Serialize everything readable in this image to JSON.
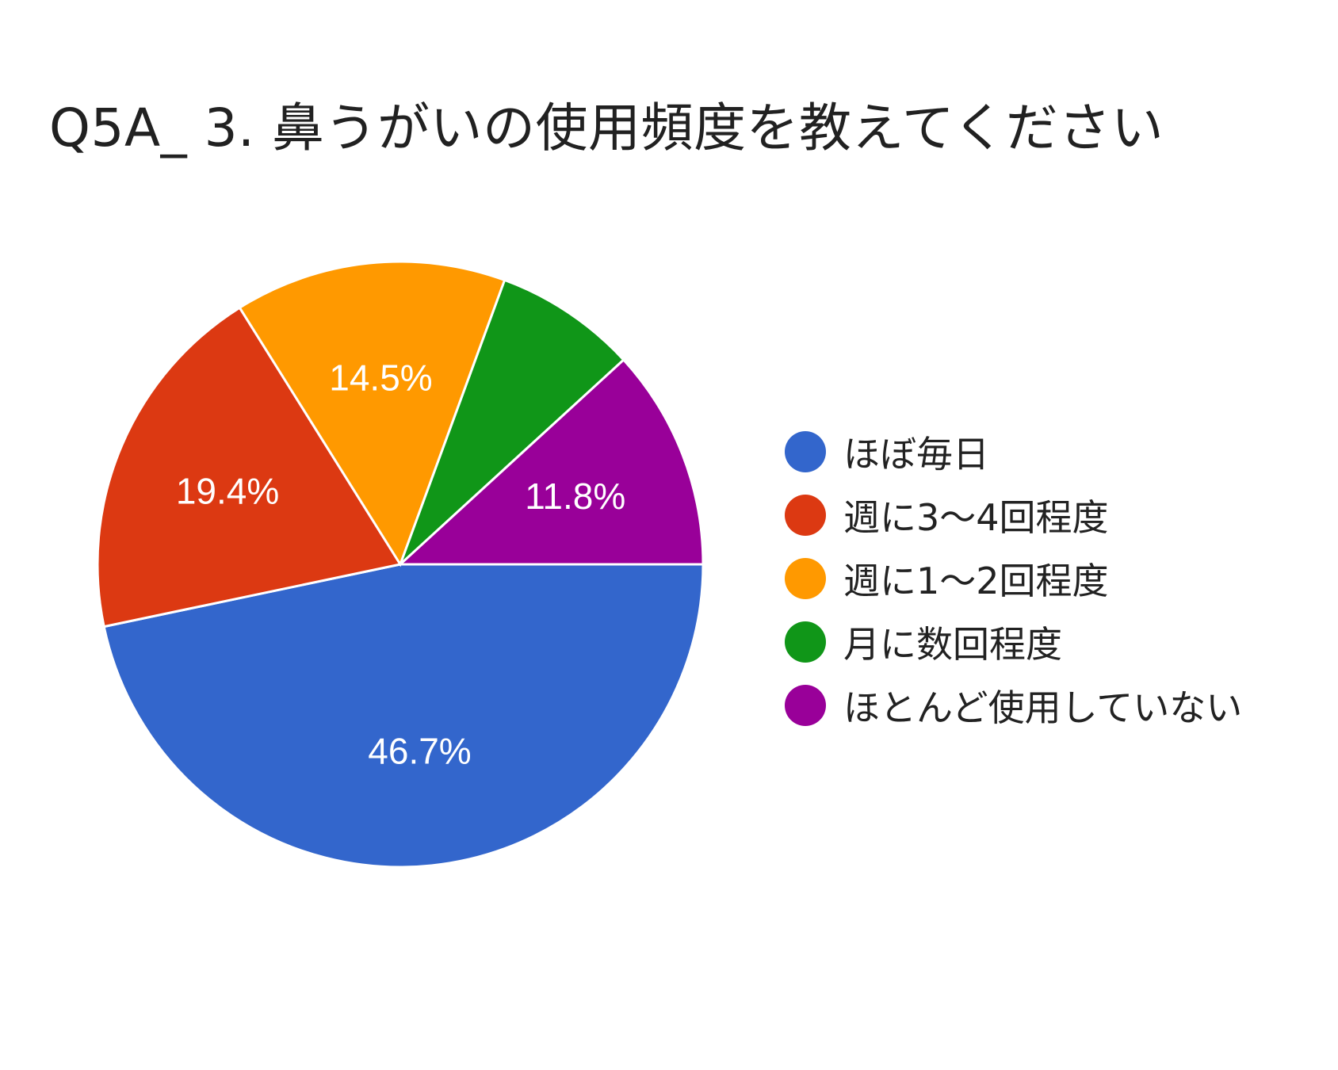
{
  "chart_data": {
    "type": "pie",
    "title": "Q5A_ 3. 鼻うがいの使用頻度を教えてください",
    "legend_position": "right",
    "slices": [
      {
        "label": "ほぼ毎日",
        "value": 46.7,
        "value_label": "46.7%",
        "color": "#3366cc"
      },
      {
        "label": "週に3〜4回程度",
        "value": 19.4,
        "value_label": "19.4%",
        "color": "#dc3912"
      },
      {
        "label": "週に1〜2回程度",
        "value": 14.5,
        "value_label": "14.5%",
        "color": "#ff9900"
      },
      {
        "label": "月に数回程度",
        "value": 7.6,
        "value_label": "",
        "color": "#109618"
      },
      {
        "label": "ほとんど使用していない",
        "value": 11.8,
        "value_label": "11.8%",
        "color": "#990099"
      }
    ]
  }
}
